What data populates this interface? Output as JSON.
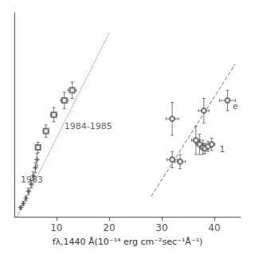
{
  "chart_data": {
    "type": "scatter",
    "xlabel": "fλ,1440 Å(10⁻¹⁴ erg cm⁻²sec⁻¹Å⁻¹)",
    "xlim": [
      2,
      45
    ],
    "ylim": [
      0,
      100
    ],
    "xticks": [
      10,
      20,
      30,
      40
    ],
    "yticks": [],
    "tick_labels": "x",
    "grid": false,
    "series": [
      {
        "type": "line",
        "line_style": "dotted",
        "color": "#999999",
        "x": [
          2.5,
          20.0
        ],
        "values": [
          0.0,
          90.0
        ]
      },
      {
        "type": "line",
        "line_style": "dashed",
        "color": "#999999",
        "x": [
          28.0,
          44.0
        ],
        "values": [
          10.0,
          75.0
        ]
      },
      {
        "type": "scatter",
        "marker": "plus",
        "color": "#555555",
        "x": [
          3.2,
          3.7,
          4.2,
          4.7,
          5.2,
          5.6,
          6.0,
          6.3
        ],
        "values": [
          4.5,
          6.5,
          9.0,
          12.5,
          16.0,
          20.0,
          24.0,
          28.0
        ],
        "xerr": [
          0.15,
          0.15,
          0.15,
          0.2,
          0.2,
          0.2,
          0.2,
          0.2
        ],
        "yerr": [
          0.8,
          1.0,
          1.2,
          1.5,
          1.8,
          2.0,
          2.5,
          3.0
        ]
      },
      {
        "type": "scatter",
        "marker": "square",
        "color": "#555555",
        "x": [
          6.5,
          8.0,
          9.5,
          11.5
        ],
        "values": [
          34.0,
          42.0,
          50.0,
          57.0
        ],
        "xerr": [
          0.4,
          0.5,
          0.6,
          0.7
        ],
        "yerr": [
          2.5,
          3.0,
          3.5,
          4.0
        ]
      },
      {
        "type": "scatter",
        "marker": "square",
        "color": "#555555",
        "x": [
          13.0
        ],
        "values": [
          62.0
        ],
        "xerr": [
          0.8
        ],
        "yerr": [
          4.0
        ]
      },
      {
        "type": "scatter",
        "marker": "circle",
        "color": "#555555",
        "x": [
          32.0,
          33.5,
          36.5,
          37.2,
          37.8,
          38.2,
          38.8,
          39.5
        ],
        "values": [
          28.0,
          27.0,
          37.5,
          35.5,
          34.0,
          33.5,
          34.5,
          35.5
        ],
        "xerr": [
          1.0,
          1.0,
          0.8,
          0.7,
          0.5,
          0.5,
          0.5,
          0.6
        ],
        "yerr": [
          4.0,
          3.5,
          7.0,
          5.0,
          3.5,
          2.5,
          2.5,
          3.0
        ]
      },
      {
        "type": "scatter",
        "marker": "circle",
        "color": "#555555",
        "x": [
          32.0,
          38.0,
          42.5
        ],
        "values": [
          48.0,
          52.0,
          57.0
        ],
        "xerr": [
          1.2,
          1.0,
          1.5
        ],
        "yerr": [
          8.0,
          6.0,
          5.0
        ]
      }
    ],
    "annotations": [
      {
        "text": "1983",
        "x": 3.2,
        "y": 16.0
      },
      {
        "text": "1984-1985",
        "x": 11.5,
        "y": 42.0
      },
      {
        "text": "1",
        "x": 41.0,
        "y": 31.0
      },
      {
        "text": "e",
        "x": 43.5,
        "y": 52.0
      }
    ]
  }
}
